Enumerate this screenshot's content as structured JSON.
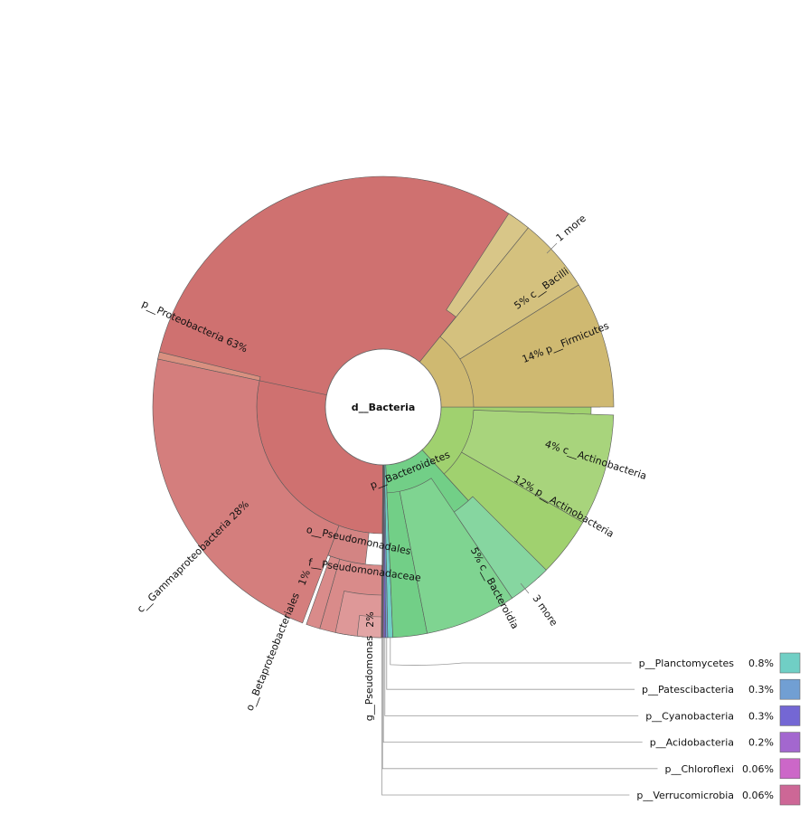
{
  "chart_data": {
    "type": "sunburst",
    "root": "d__Bacteria",
    "rings": {
      "phylum": [
        {
          "name": "p__Proteobacteria",
          "label": "p__Proteobacteria",
          "pct": "63%",
          "value": 63.0,
          "color": "#cf7170"
        },
        {
          "name": "p__Bacteroidetes",
          "label": "p__Bacteroidetes",
          "pct": "",
          "value": 7.5,
          "color": "#72cf87"
        },
        {
          "name": "p__Actinobacteria",
          "label": "p__Actinobacteria",
          "pct": "12%",
          "value": 12.0,
          "color": "#a0d16f"
        },
        {
          "name": "p__Firmicutes",
          "label": "p__Firmicutes",
          "pct": "14%",
          "value": 14.0,
          "color": "#cfb971"
        },
        {
          "name": "p__Planctomycetes",
          "label": "",
          "pct": "",
          "value": 0.8,
          "color": "#70cfc5"
        },
        {
          "name": "p__Patescibacteria",
          "label": "",
          "pct": "",
          "value": 0.3,
          "color": "#719fd3"
        },
        {
          "name": "p__Cyanobacteria",
          "label": "",
          "pct": "",
          "value": 0.3,
          "color": "#7467d4"
        },
        {
          "name": "p__Acidobacteria",
          "label": "",
          "pct": "",
          "value": 0.2,
          "color": "#a367cf"
        },
        {
          "name": "p__Chloroflexi",
          "label": "",
          "pct": "",
          "value": 0.06,
          "color": "#cc67c8"
        },
        {
          "name": "p__Verrucomicrobia",
          "label": "",
          "pct": "",
          "value": 0.06,
          "color": "#cd6796"
        }
      ],
      "class": [
        {
          "name": "c__Gammaproteobacteria",
          "label": "c__Gammaproteobacteria",
          "pct": "28%",
          "value": 28.0,
          "color": "#d47e7d"
        },
        {
          "name": "c__Bacteroidia",
          "label": "c__Bacteroidia",
          "pct": "5%",
          "value": 5.0,
          "color": "#7fd491"
        },
        {
          "name": "c__Actinobacteria",
          "label": "c__Actinobacteria",
          "pct": "4%",
          "value": 4.0,
          "color": "#a8d47c"
        },
        {
          "name": "c__Bacilli",
          "label": "c__Bacilli",
          "pct": "5%",
          "value": 5.0,
          "color": "#d4c17e"
        }
      ],
      "order": [
        {
          "name": "o__Pseudomonadales",
          "label": "o__Pseudomonadales",
          "pct": "",
          "value": 4.0,
          "color": "#d98b8a"
        },
        {
          "name": "o__Betaproteobacteriales",
          "label": "o__Betaproteobacteriales",
          "pct": "1%",
          "value": 1.0,
          "color": "#d98b8a"
        }
      ],
      "family": [
        {
          "name": "f__Pseudomonadaceae",
          "label": "f__Pseudomonadaceae",
          "pct": "",
          "value": 2.5,
          "color": "#de9898"
        }
      ],
      "genus": [
        {
          "name": "g__Pseudomonas",
          "label": "g__Pseudomonas",
          "pct": "2%",
          "value": 2.0,
          "color": "#e2a5a5"
        }
      ]
    },
    "more_labels": [
      "1 more",
      "3 more"
    ],
    "legend": [
      {
        "name": "p__Planctomycetes",
        "pct": "0.8%",
        "color": "#70cfc5"
      },
      {
        "name": "p__Patescibacteria",
        "pct": "0.3%",
        "color": "#719fd3"
      },
      {
        "name": "p__Cyanobacteria",
        "pct": "0.3%",
        "color": "#7467d4"
      },
      {
        "name": "p__Acidobacteria",
        "pct": "0.2%",
        "color": "#a367cf"
      },
      {
        "name": "p__Chloroflexi",
        "pct": "0.06%",
        "color": "#cc67c8"
      },
      {
        "name": "p__Verrucomicrobia",
        "pct": "0.06%",
        "color": "#cd6796"
      }
    ]
  }
}
